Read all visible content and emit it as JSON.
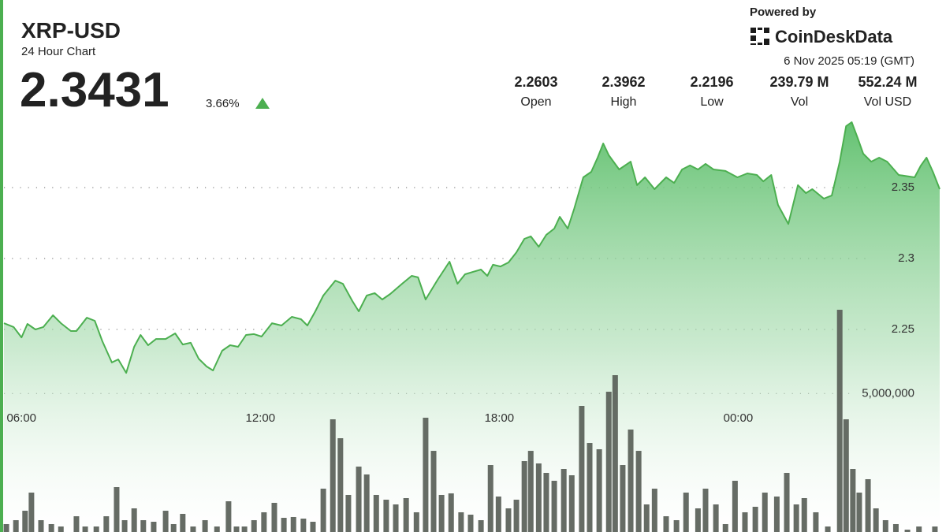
{
  "header": {
    "symbol": "XRP-USD",
    "subtitle": "24 Hour Chart",
    "price": "2.3431",
    "change": "3.66%",
    "powered_by": "Powered by",
    "brand": "CoinDeskData",
    "timestamp": "6 Nov 2025 05:19 (GMT)",
    "stats": [
      {
        "value": "2.2603",
        "label": "Open"
      },
      {
        "value": "2.3962",
        "label": "High"
      },
      {
        "value": "2.2196",
        "label": "Low"
      },
      {
        "value": "239.79 M",
        "label": "Vol"
      },
      {
        "value": "552.24 M",
        "label": "Vol USD"
      }
    ]
  },
  "chart_data": [
    {
      "type": "line",
      "color": "#4caf50",
      "x": [
        5.56,
        5.8,
        6.0,
        6.15,
        6.35,
        6.55,
        6.79,
        6.99,
        7.24,
        7.38,
        7.64,
        7.84,
        8.03,
        8.27,
        8.43,
        8.63,
        8.83,
        8.99,
        9.18,
        9.38,
        9.62,
        9.86,
        10.05,
        10.25,
        10.45,
        10.65,
        10.81,
        11.04,
        11.24,
        11.44,
        11.64,
        11.84,
        12.03,
        12.29,
        12.53,
        12.79,
        13.02,
        13.18,
        13.38,
        13.58,
        13.88,
        14.07,
        14.31,
        14.47,
        14.67,
        14.87,
        15.06,
        15.26,
        15.56,
        15.8,
        15.96,
        16.15,
        16.45,
        16.75,
        16.95,
        17.14,
        17.34,
        17.54,
        17.7,
        17.84,
        18.03,
        18.23,
        18.43,
        18.63,
        18.79,
        18.99,
        19.18,
        19.38,
        19.52,
        19.72,
        19.88,
        20.11,
        20.31,
        20.47,
        20.61,
        20.75,
        21.01,
        21.3,
        21.46,
        21.66,
        21.9,
        22.19,
        22.39,
        22.59,
        22.79,
        22.99,
        23.18,
        23.38,
        23.68,
        23.98,
        24.23,
        24.47,
        24.63,
        24.83,
        25.0,
        25.26,
        25.5,
        25.7,
        25.86,
        26.15,
        26.35,
        26.55,
        26.71,
        26.85,
        27.0,
        27.14,
        27.34,
        27.54,
        27.74,
        28.03,
        28.43,
        28.59,
        28.73,
        28.89,
        29.06
      ],
      "values": [
        2.2544,
        2.2517,
        2.2444,
        2.2539,
        2.25,
        2.2517,
        2.26,
        2.2544,
        2.2489,
        2.2489,
        2.2583,
        2.2561,
        2.2417,
        2.2267,
        2.2289,
        2.2194,
        2.2378,
        2.2461,
        2.2389,
        2.2433,
        2.2433,
        2.2472,
        2.2394,
        2.2406,
        2.2294,
        2.2239,
        2.2211,
        2.235,
        2.2389,
        2.2378,
        2.2461,
        2.2467,
        2.245,
        2.2544,
        2.2528,
        2.2589,
        2.2572,
        2.2528,
        2.2628,
        2.2739,
        2.2844,
        2.2822,
        2.27,
        2.2628,
        2.2739,
        2.2756,
        2.2711,
        2.275,
        2.2822,
        2.2878,
        2.2867,
        2.2711,
        2.285,
        2.2978,
        2.2822,
        2.2889,
        2.2906,
        2.2922,
        2.2878,
        2.2956,
        2.2944,
        2.2972,
        2.3044,
        2.3139,
        2.3156,
        2.3083,
        2.3167,
        2.3211,
        2.3294,
        2.3211,
        2.335,
        2.3572,
        2.3611,
        2.3711,
        2.3811,
        2.3728,
        2.3628,
        2.3683,
        2.3517,
        2.3572,
        2.3489,
        2.3572,
        2.3533,
        2.3628,
        2.3656,
        2.3628,
        2.3667,
        2.3628,
        2.3617,
        2.3572,
        2.36,
        2.3589,
        2.3544,
        2.3589,
        2.3378,
        2.3244,
        2.3517,
        2.3461,
        2.3489,
        2.3422,
        2.3444,
        2.3683,
        2.3933,
        2.3961,
        2.385,
        2.3739,
        2.3683,
        2.3711,
        2.3683,
        2.3589,
        2.3572,
        2.3656,
        2.3711,
        2.3611,
        2.3489
      ],
      "xlim": [
        5.5,
        29.1
      ],
      "xticks": [
        {
          "value": 6,
          "label": "06:00"
        },
        {
          "value": 12,
          "label": "12:00"
        },
        {
          "value": 18,
          "label": "18:00"
        },
        {
          "value": 24,
          "label": "00:00"
        }
      ],
      "ylim": [
        2.11,
        2.4
      ],
      "yticks": [
        2.25,
        2.3,
        2.35
      ],
      "grid": true
    },
    {
      "type": "bar",
      "color": "#596058",
      "x": [
        5.62,
        5.86,
        6.09,
        6.25,
        6.49,
        6.75,
        6.99,
        7.38,
        7.6,
        7.88,
        8.13,
        8.39,
        8.59,
        8.83,
        9.06,
        9.32,
        9.62,
        9.82,
        10.05,
        10.31,
        10.61,
        10.91,
        11.2,
        11.4,
        11.6,
        11.84,
        12.09,
        12.35,
        12.59,
        12.83,
        13.08,
        13.32,
        13.58,
        13.82,
        14.01,
        14.21,
        14.47,
        14.67,
        14.91,
        15.16,
        15.4,
        15.66,
        15.92,
        16.15,
        16.35,
        16.55,
        16.79,
        17.04,
        17.28,
        17.54,
        17.78,
        17.98,
        18.23,
        18.43,
        18.63,
        18.79,
        18.99,
        19.18,
        19.38,
        19.62,
        19.82,
        20.07,
        20.27,
        20.51,
        20.75,
        20.91,
        21.1,
        21.3,
        21.5,
        21.7,
        21.9,
        22.19,
        22.45,
        22.69,
        22.99,
        23.18,
        23.44,
        23.68,
        23.92,
        24.17,
        24.43,
        24.67,
        24.97,
        25.22,
        25.46,
        25.66,
        25.95,
        26.25,
        26.55,
        26.71,
        26.88,
        27.04,
        27.26,
        27.46,
        27.7,
        27.96,
        28.25,
        28.54,
        28.94
      ],
      "values": [
        285000,
        427000,
        768000,
        1423000,
        427000,
        285000,
        199000,
        569000,
        199000,
        199000,
        569000,
        1622000,
        427000,
        854000,
        427000,
        370000,
        768000,
        285000,
        655000,
        199000,
        427000,
        199000,
        1110000,
        199000,
        199000,
        427000,
        712000,
        1053000,
        512000,
        541000,
        484000,
        370000,
        1565000,
        4070000,
        3387000,
        1338000,
        2362000,
        2078000,
        1338000,
        1167000,
        996000,
        1224000,
        712000,
        4127000,
        2931000,
        1338000,
        1395000,
        712000,
        626000,
        427000,
        2419000,
        1281000,
        854000,
        1167000,
        2561000,
        2931000,
        2476000,
        2135000,
        1850000,
        2277000,
        2049000,
        4554000,
        3216000,
        2988000,
        5066000,
        5664000,
        2419000,
        3700000,
        2931000,
        996000,
        1565000,
        569000,
        427000,
        1423000,
        854000,
        1565000,
        996000,
        285000,
        1850000,
        712000,
        911000,
        1423000,
        1281000,
        2135000,
        996000,
        1224000,
        712000,
        199000,
        8026000,
        4070000,
        2277000,
        1423000,
        1907000,
        854000,
        427000,
        285000,
        85000,
        199000,
        199000
      ],
      "xlim": [
        5.5,
        29.1
      ],
      "ylim": [
        0,
        15000000
      ],
      "yticks": [
        {
          "value": 5000000,
          "label": "5,000,000"
        }
      ],
      "grid": true
    }
  ]
}
